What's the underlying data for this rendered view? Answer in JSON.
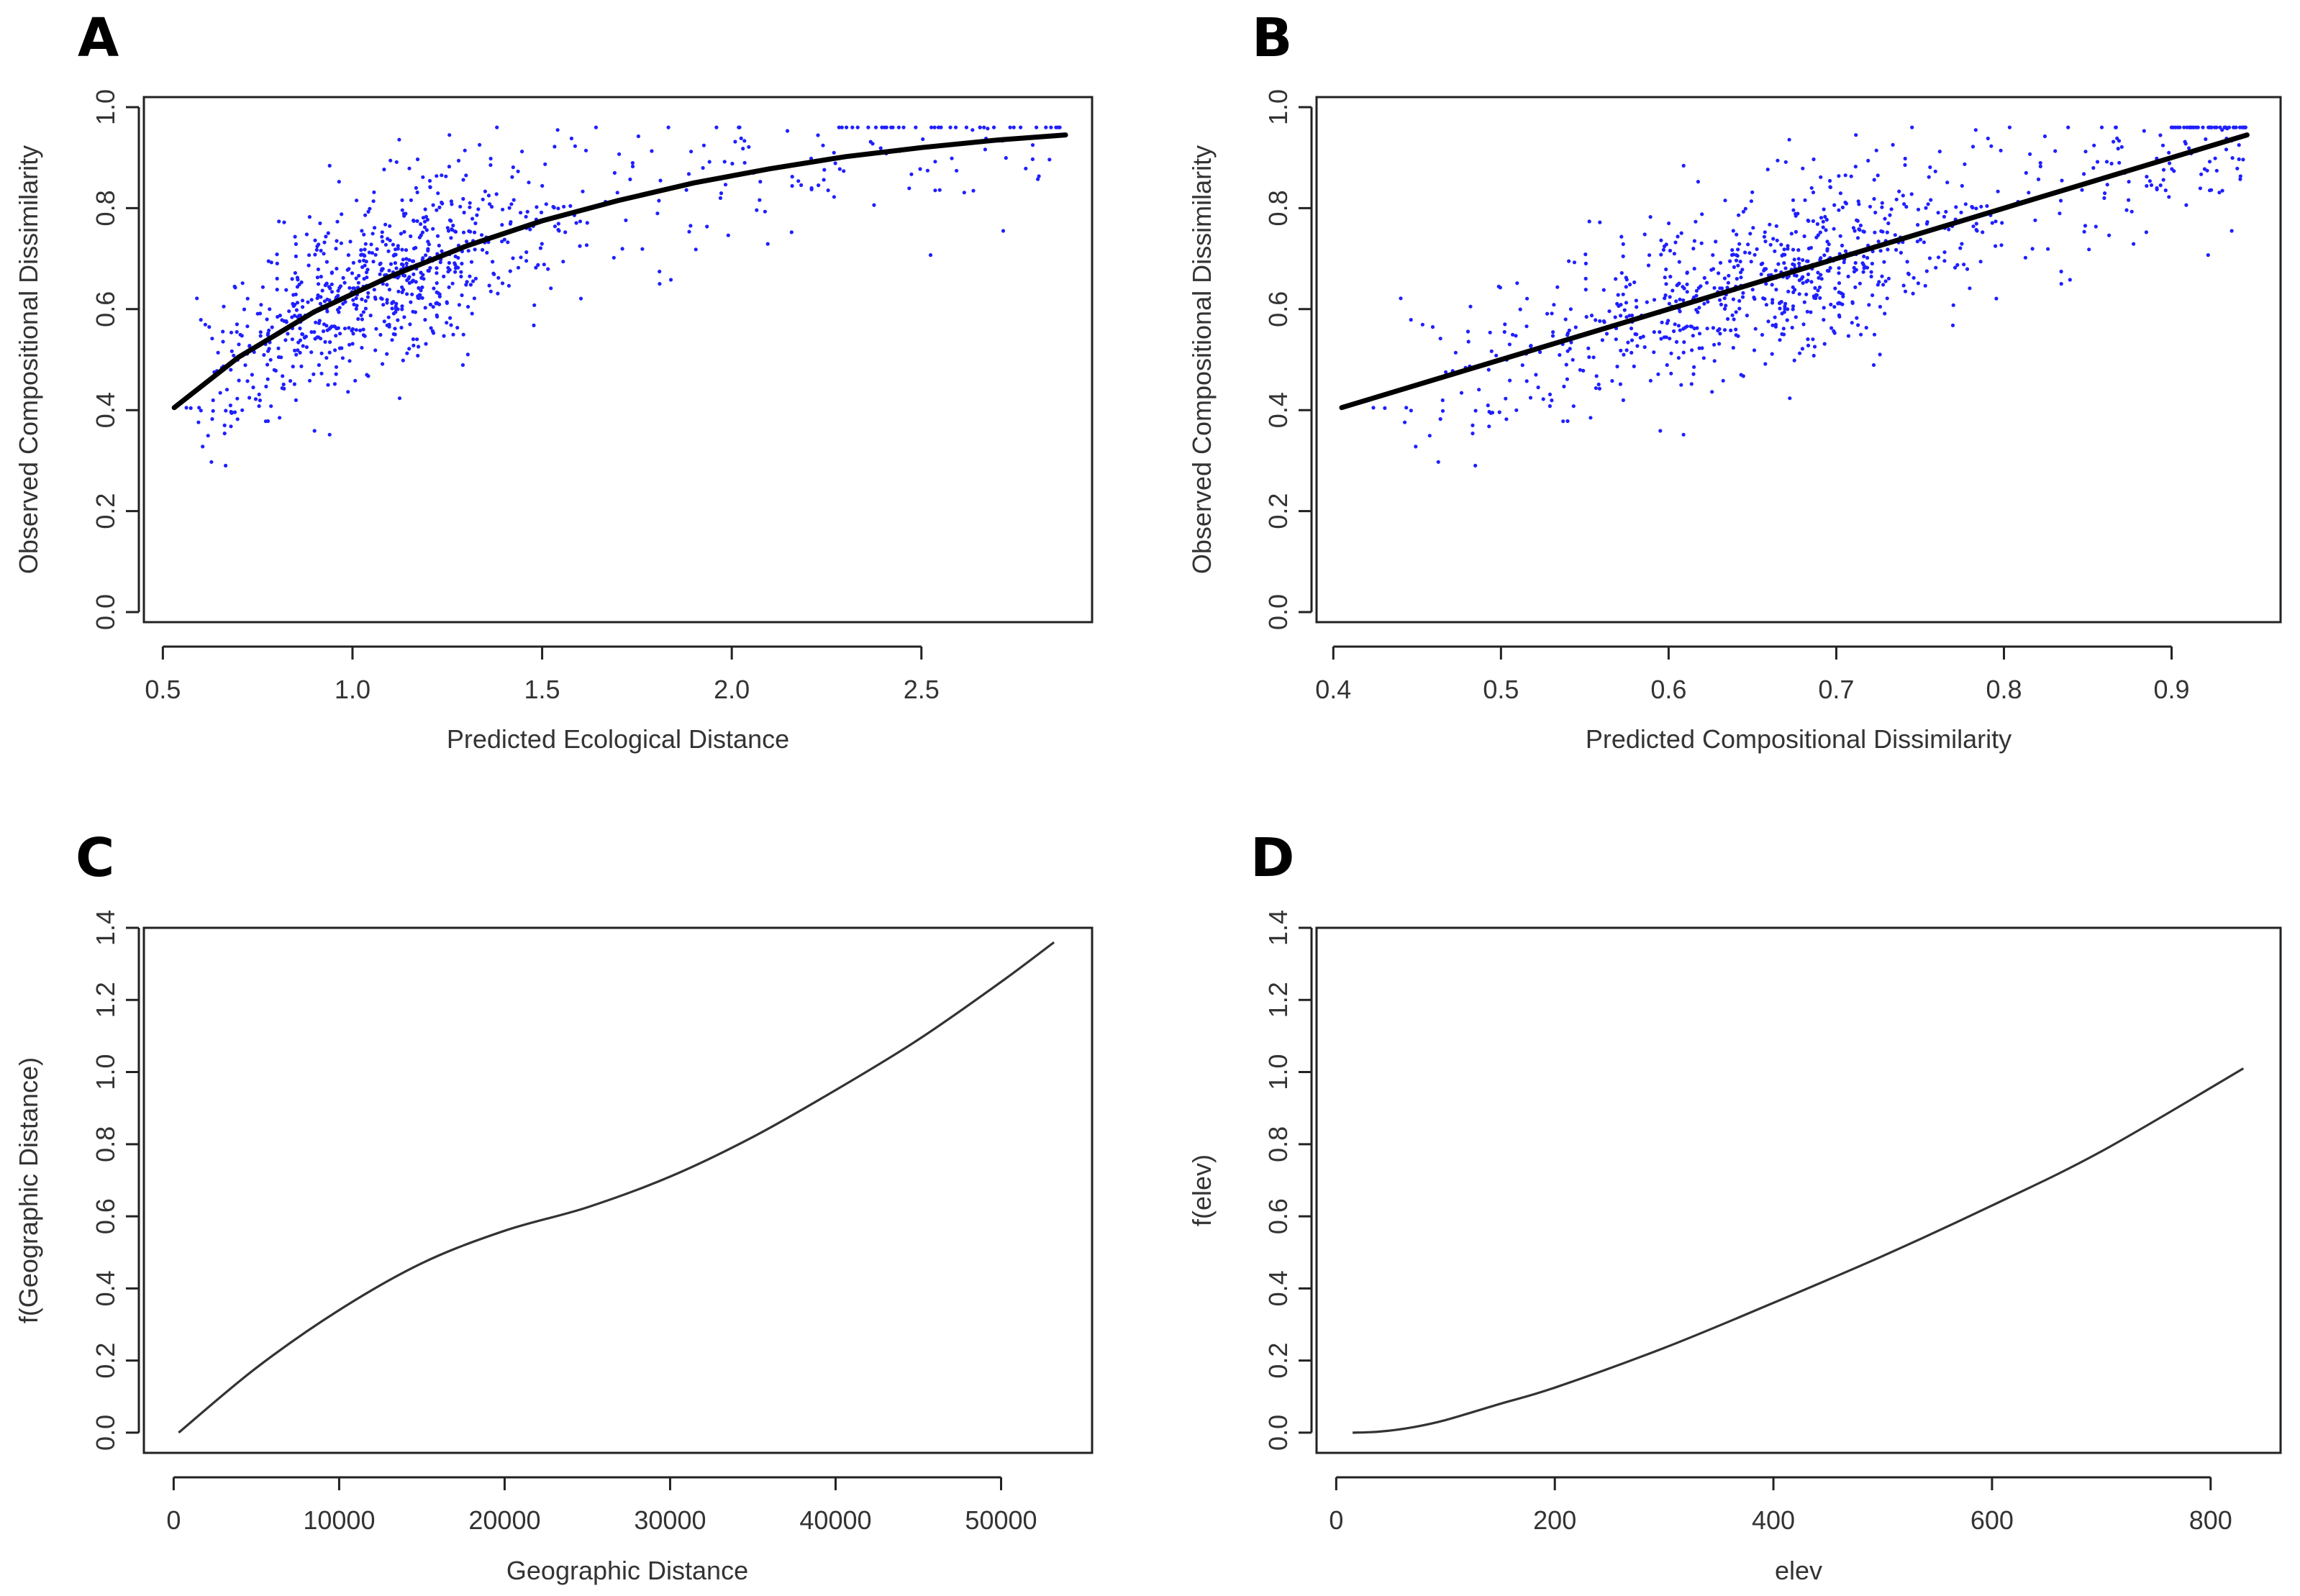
{
  "chart_data": [
    {
      "panel": "A",
      "type": "scatter",
      "xlabel": "Predicted Ecological Distance",
      "ylabel": "Observed Compositional Dissimilarity",
      "xlim": [
        0.45,
        2.95
      ],
      "ylim": [
        -0.02,
        1.02
      ],
      "xticks": [
        0.5,
        1.0,
        1.5,
        2.0,
        2.5
      ],
      "xtick_labels": [
        "0.5",
        "1.0",
        "1.5",
        "2.0",
        "2.5"
      ],
      "yticks": [
        0.0,
        0.2,
        0.4,
        0.6,
        0.8,
        1.0
      ],
      "ytick_labels": [
        "0.0",
        "0.2",
        "0.4",
        "0.6",
        "0.8",
        "1.0"
      ],
      "point_color": "#1f1fff",
      "line_color": "#000000",
      "points": {
        "count": 900,
        "x_range": [
          0.52,
          2.88
        ],
        "y_range": [
          0.29,
          0.96
        ]
      },
      "fit_line": {
        "x": [
          0.53,
          0.7,
          0.9,
          1.1,
          1.3,
          1.5,
          1.7,
          1.9,
          2.1,
          2.3,
          2.5,
          2.7,
          2.88
        ],
        "y": [
          0.405,
          0.505,
          0.595,
          0.665,
          0.725,
          0.775,
          0.815,
          0.85,
          0.878,
          0.902,
          0.92,
          0.935,
          0.945
        ]
      }
    },
    {
      "panel": "B",
      "type": "scatter",
      "xlabel": "Predicted Compositional Dissimilarity",
      "ylabel": "Observed Compositional Dissimilarity",
      "xlim": [
        0.39,
        0.965
      ],
      "ylim": [
        -0.02,
        1.02
      ],
      "xticks": [
        0.4,
        0.5,
        0.6,
        0.7,
        0.8,
        0.9
      ],
      "xtick_labels": [
        "0.4",
        "0.5",
        "0.6",
        "0.7",
        "0.8",
        "0.9"
      ],
      "yticks": [
        0.0,
        0.2,
        0.4,
        0.6,
        0.8,
        1.0
      ],
      "ytick_labels": [
        "0.0",
        "0.2",
        "0.4",
        "0.6",
        "0.8",
        "1.0"
      ],
      "point_color": "#1f1fff",
      "line_color": "#000000",
      "points": {
        "count": 900,
        "x_range": [
          0.41,
          0.94
        ],
        "y_range": [
          0.29,
          0.96
        ]
      },
      "fit_line": {
        "x": [
          0.405,
          0.945
        ],
        "y": [
          0.405,
          0.945
        ]
      }
    },
    {
      "panel": "C",
      "type": "line",
      "xlabel": "Geographic Distance",
      "ylabel": "f(Geographic Distance)",
      "xlim": [
        -1800,
        55500
      ],
      "ylim": [
        -0.056,
        1.4
      ],
      "xticks": [
        0,
        10000,
        20000,
        30000,
        40000,
        50000
      ],
      "xtick_labels": [
        "0",
        "10000",
        "20000",
        "30000",
        "40000",
        "50000"
      ],
      "yticks": [
        0.0,
        0.2,
        0.4,
        0.6,
        0.8,
        1.0,
        1.2,
        1.4
      ],
      "ytick_labels": [
        "0.0",
        "0.2",
        "0.4",
        "0.6",
        "0.8",
        "1.0",
        "1.2",
        "1.4"
      ],
      "line_color": "#333333",
      "x": [
        300,
        5000,
        10000,
        15000,
        20000,
        25000,
        30000,
        35000,
        40000,
        45000,
        50000,
        53200
      ],
      "y": [
        0.0,
        0.18,
        0.34,
        0.47,
        0.56,
        0.625,
        0.71,
        0.82,
        0.95,
        1.09,
        1.25,
        1.36
      ]
    },
    {
      "panel": "D",
      "type": "line",
      "xlabel": "elev",
      "ylabel": "f(elev)",
      "xlim": [
        -18,
        864
      ],
      "ylim": [
        -0.056,
        1.4
      ],
      "xticks": [
        0,
        200,
        400,
        600,
        800
      ],
      "xtick_labels": [
        "0",
        "200",
        "400",
        "600",
        "800"
      ],
      "yticks": [
        0.0,
        0.2,
        0.4,
        0.6,
        0.8,
        1.0,
        1.2,
        1.4
      ],
      "ytick_labels": [
        "0.0",
        "0.2",
        "0.4",
        "0.6",
        "0.8",
        "1.0",
        "1.2",
        "1.4"
      ],
      "line_color": "#333333",
      "x": [
        15,
        40,
        70,
        100,
        150,
        200,
        300,
        400,
        500,
        600,
        700,
        830
      ],
      "y": [
        0.0,
        0.003,
        0.015,
        0.035,
        0.08,
        0.125,
        0.235,
        0.36,
        0.49,
        0.63,
        0.78,
        1.01
      ]
    }
  ]
}
